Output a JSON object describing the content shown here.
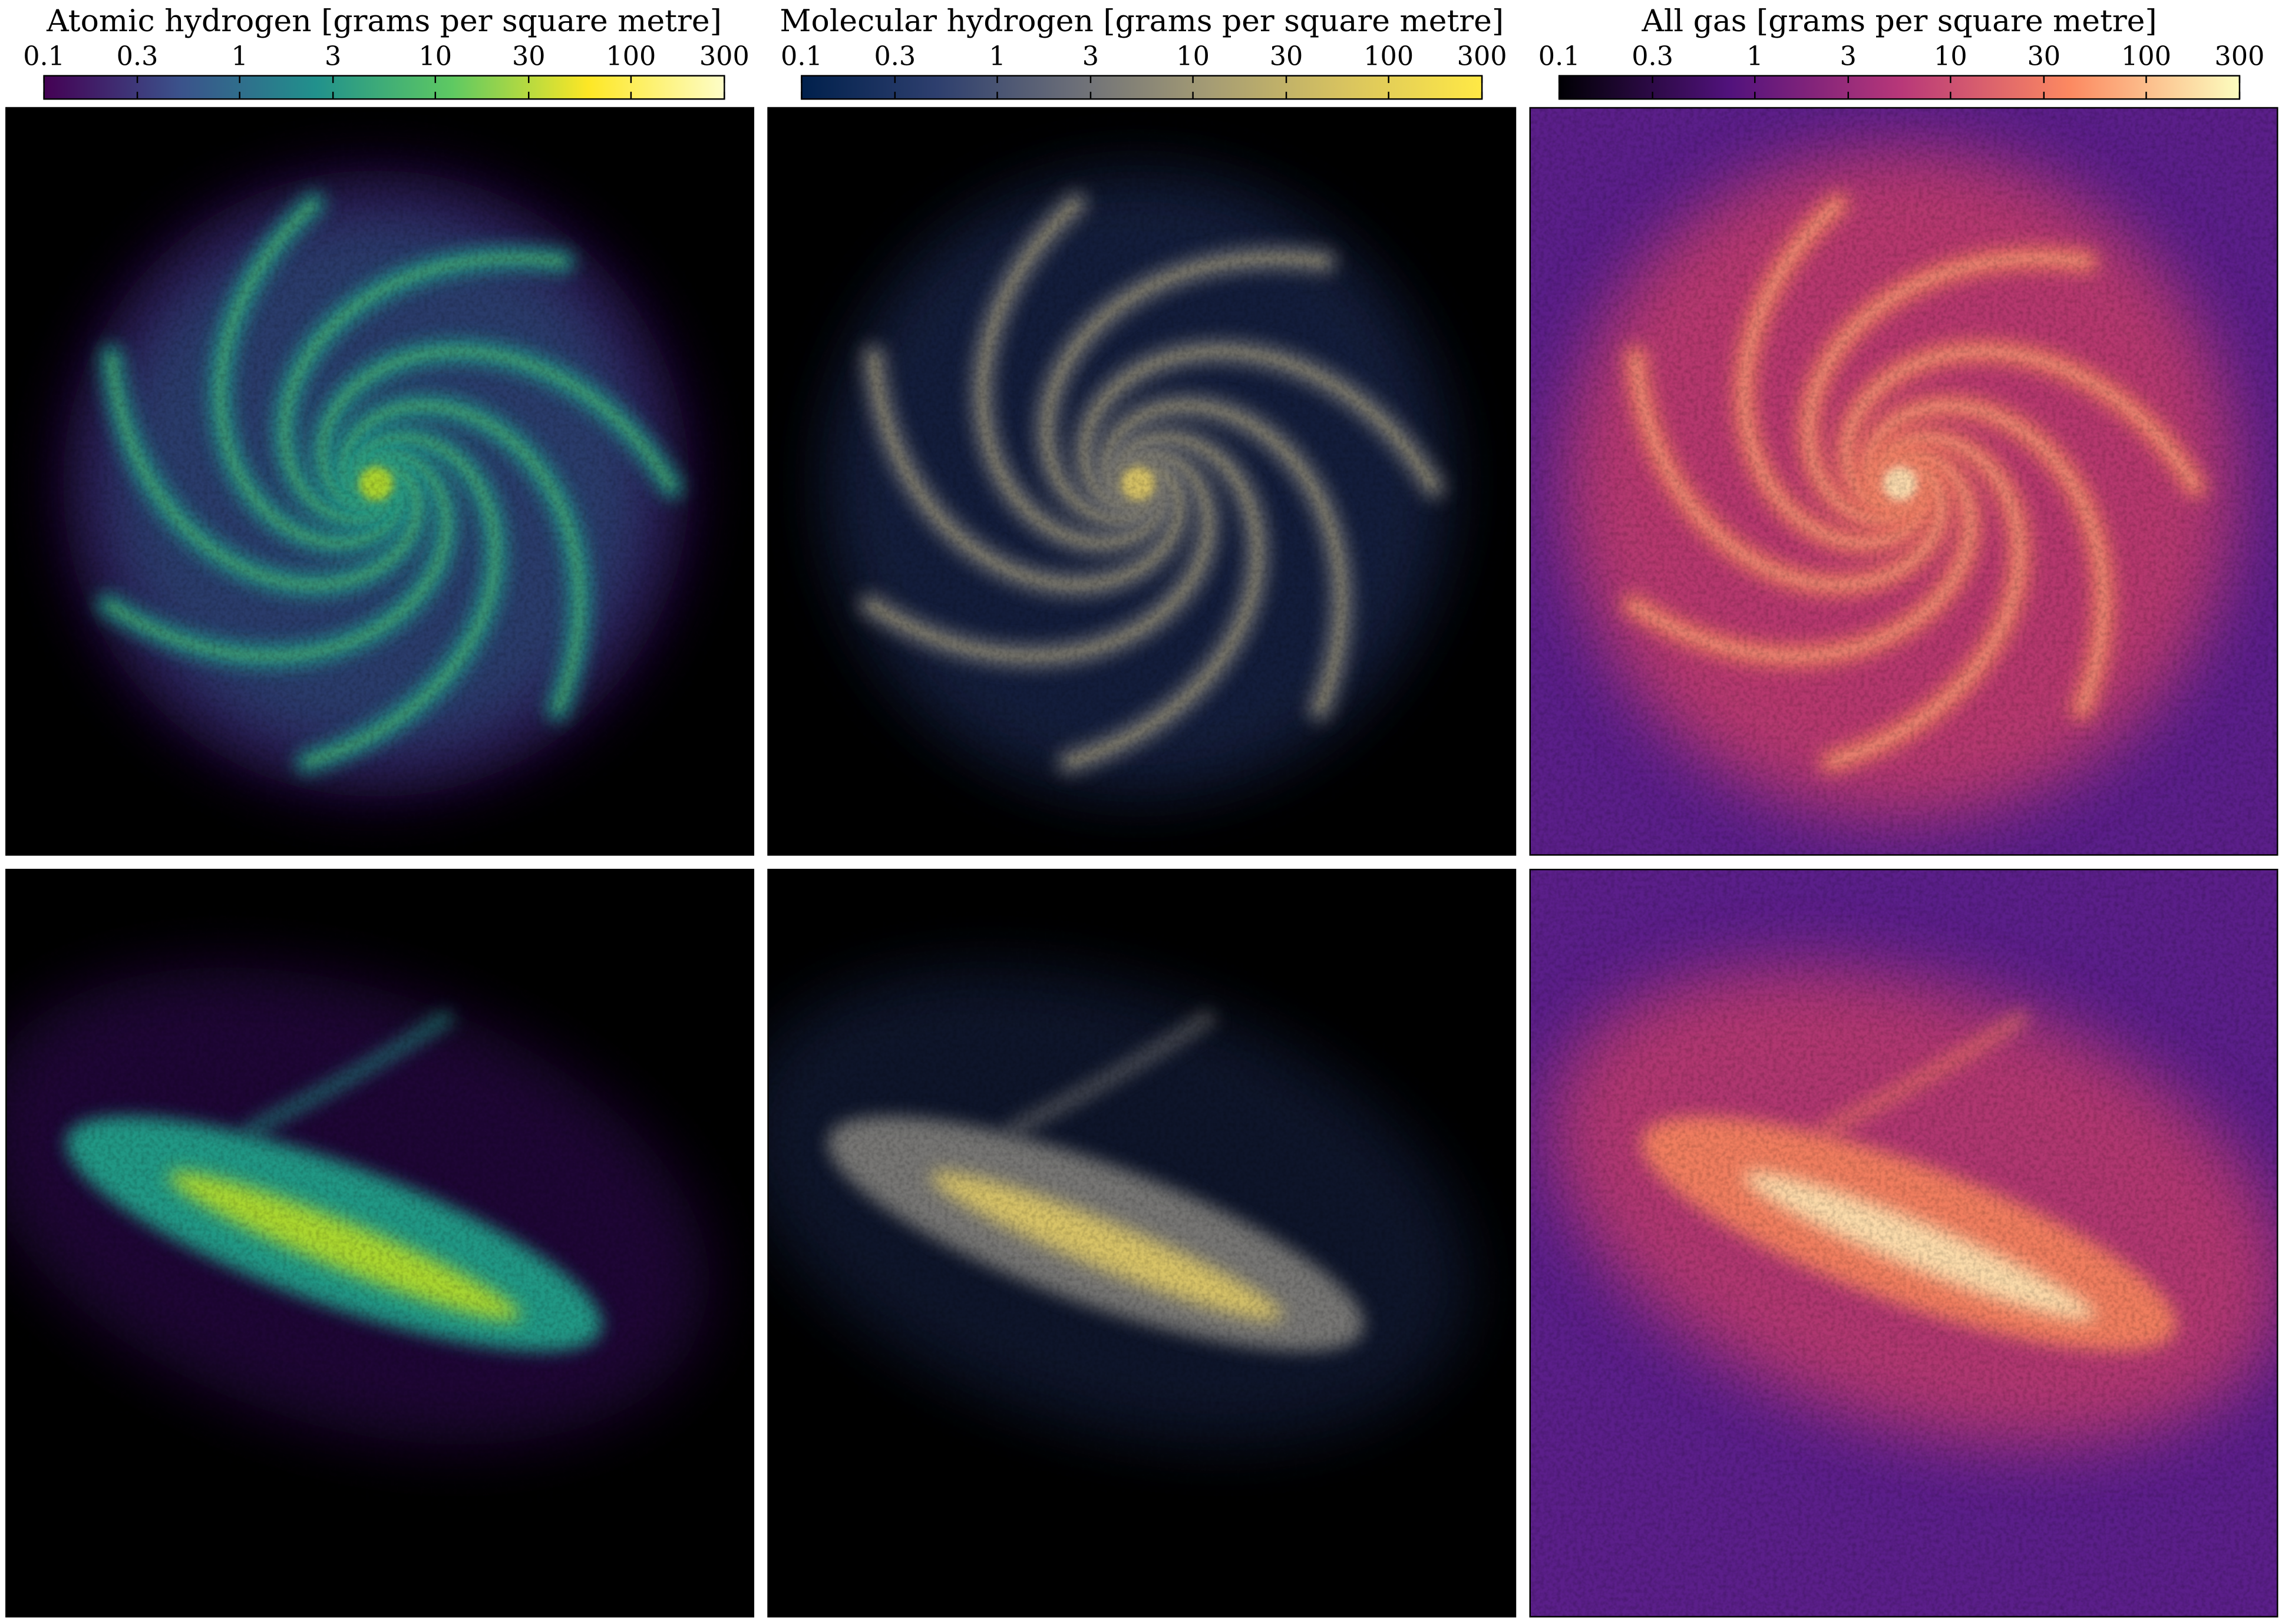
{
  "chart_data": [
    {
      "type": "heatmap",
      "title": "Atomic hydrogen [grams per square metre]",
      "log_scale": true,
      "clim": [
        0.1,
        300
      ],
      "cticks": [
        0.1,
        0.3,
        1,
        3,
        10,
        30,
        100,
        300
      ],
      "colormap": [
        "#440154",
        "#3b528b",
        "#21918c",
        "#5ec962",
        "#fde725",
        "#fdfdc8"
      ]
    },
    {
      "type": "heatmap",
      "title": "Molecular hydrogen [grams per square metre]",
      "log_scale": true,
      "clim": [
        0.1,
        300
      ],
      "cticks": [
        0.1,
        0.3,
        1,
        3,
        10,
        30,
        100,
        300
      ],
      "colormap": [
        "#00204c",
        "#2e3f6e",
        "#6b6e78",
        "#a59c74",
        "#d9c45f",
        "#ffe945"
      ]
    },
    {
      "type": "heatmap",
      "title": "All gas [grams per square metre]",
      "log_scale": true,
      "clim": [
        0.1,
        300
      ],
      "cticks": [
        0.1,
        0.3,
        1,
        3,
        10,
        30,
        100,
        300
      ],
      "colormap": [
        "#000004",
        "#51127c",
        "#b73779",
        "#fc8961",
        "#fcfdbf"
      ]
    }
  ]
}
